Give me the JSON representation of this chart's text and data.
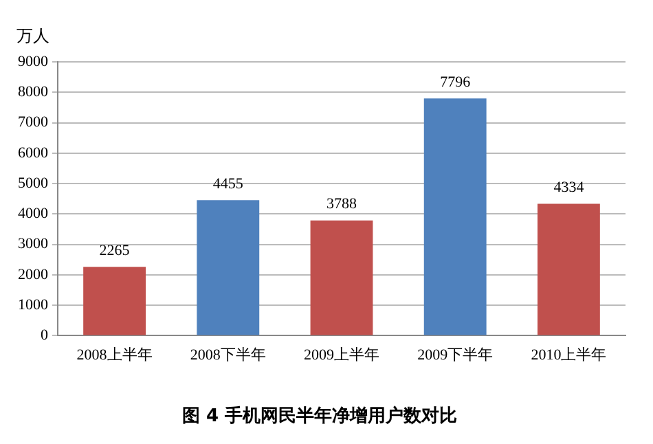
{
  "chart_data": {
    "type": "bar",
    "title": "图 4 手机网民半年净增用户数对比",
    "ylabel": "万人",
    "categories": [
      "2008上半年",
      "2008下半年",
      "2009上半年",
      "2009下半年",
      "2010上半年"
    ],
    "values": [
      2265,
      4455,
      3788,
      7796,
      4334
    ],
    "colors": [
      "#c0504d",
      "#4f81bd",
      "#c0504d",
      "#4f81bd",
      "#c0504d"
    ],
    "ylim": [
      0,
      9000
    ],
    "yticks": [
      0,
      1000,
      2000,
      3000,
      4000,
      5000,
      6000,
      7000,
      8000,
      9000
    ],
    "grid": "y",
    "data_labels": true,
    "legend": false
  }
}
